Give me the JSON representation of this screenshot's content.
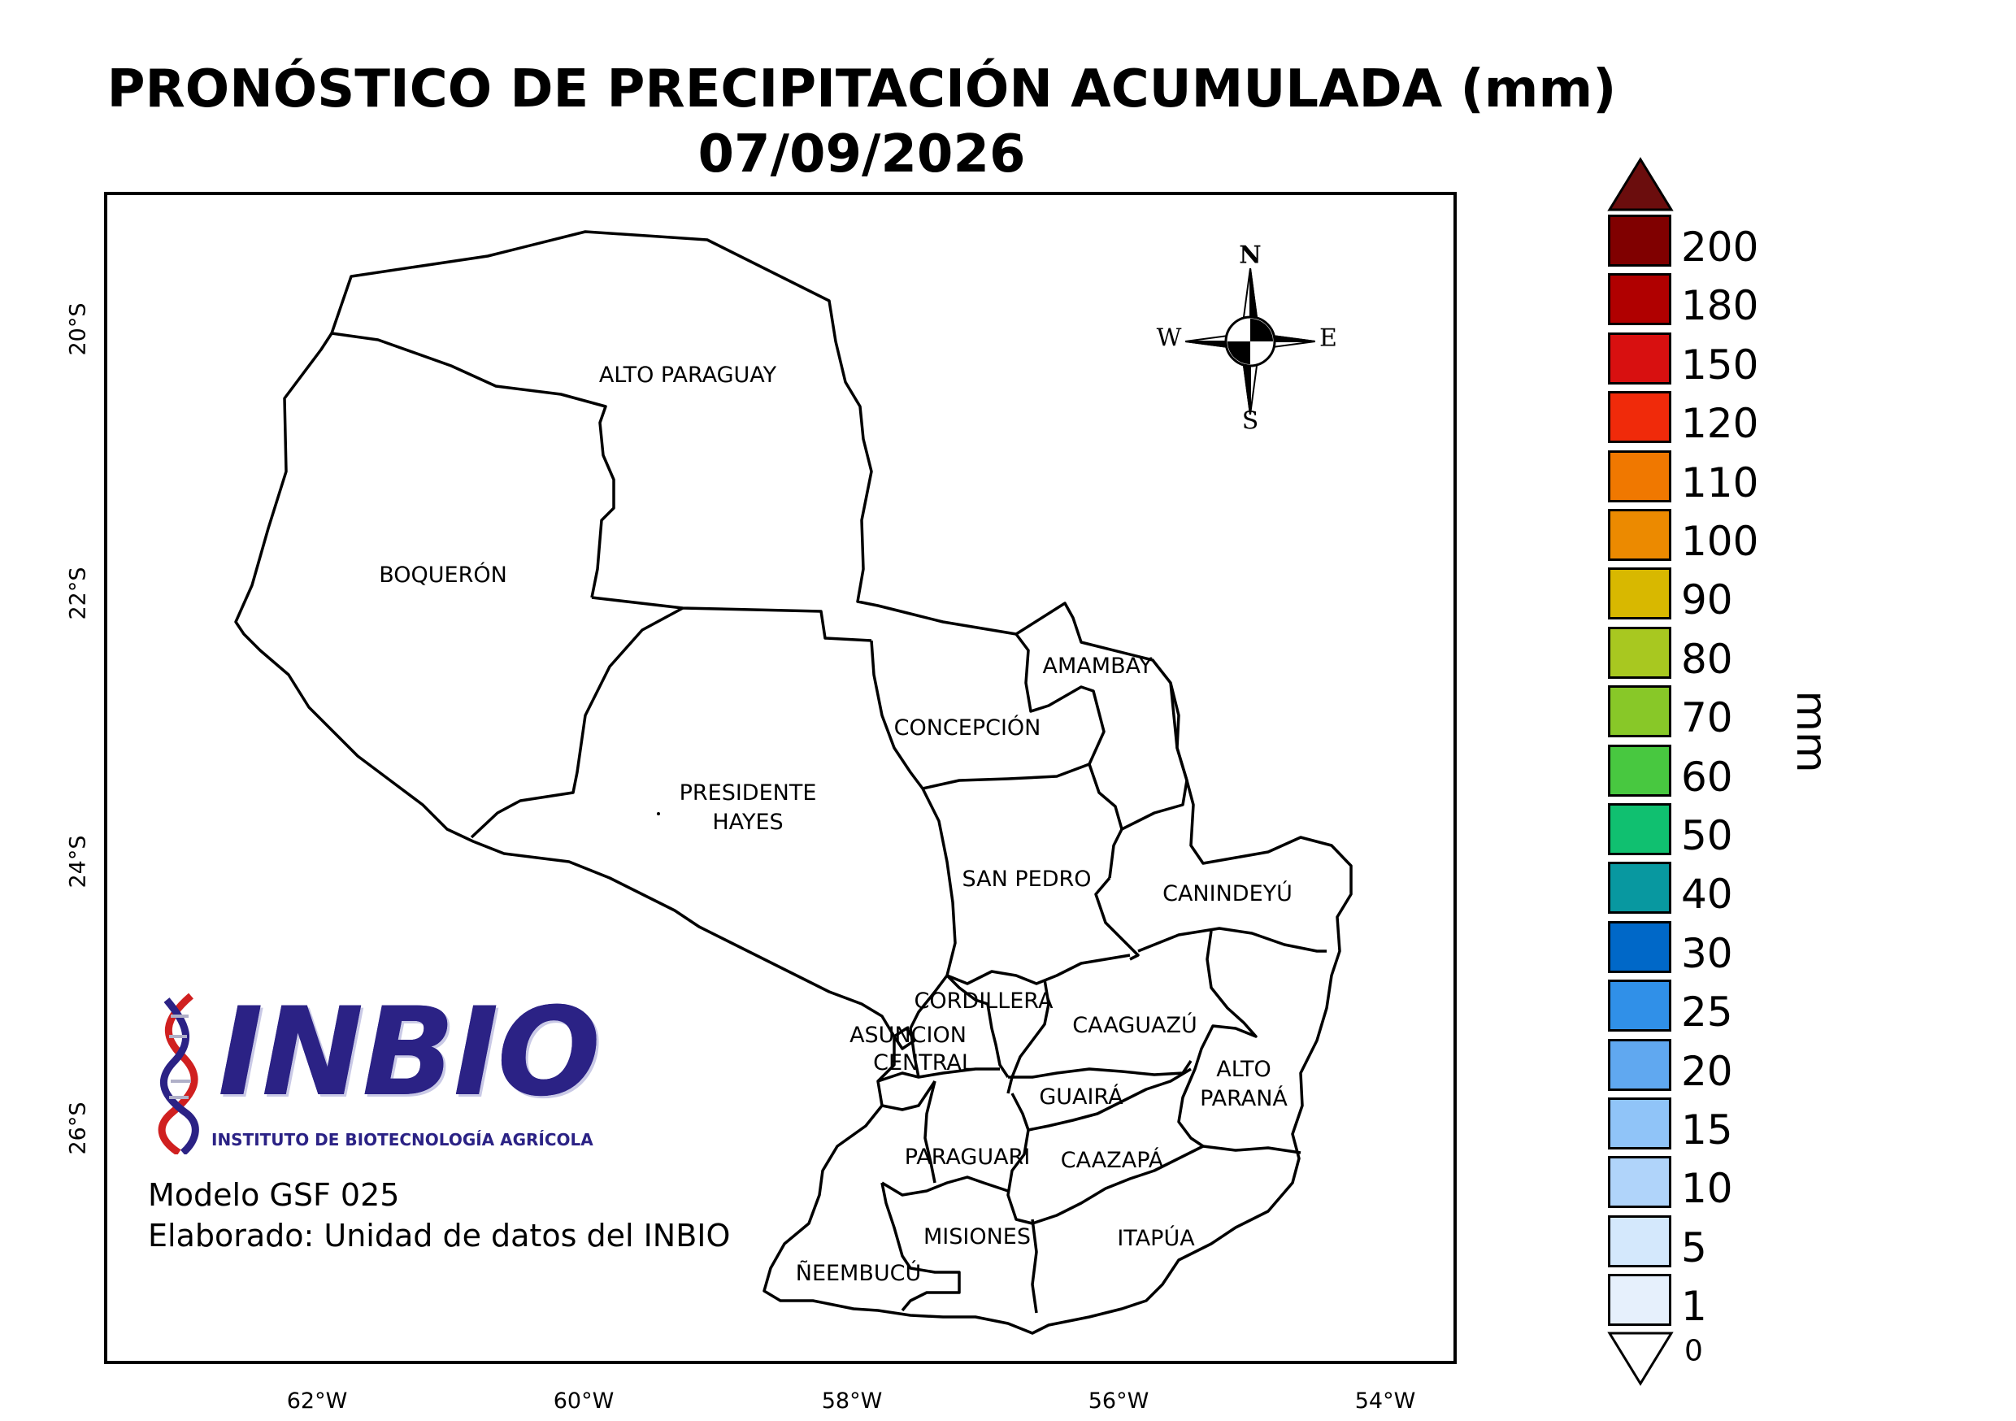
{
  "title": {
    "line1": "PRONÓSTICO DE PRECIPITACIÓN ACUMULADA (mm)",
    "line2": "07/09/2026"
  },
  "axes": {
    "x_ticks": [
      "62°W",
      "60°W",
      "58°W",
      "56°W",
      "54°W"
    ],
    "y_ticks": [
      "20°S",
      "22°S",
      "24°S",
      "26°S"
    ]
  },
  "departments": {
    "alto_paraguay": "ALTO PARAGUAY",
    "boqueron": "BOQUERÓN",
    "presidente_hayes": [
      "PRESIDENTE",
      "HAYES"
    ],
    "concepcion": "CONCEPCIÓN",
    "amambay": "AMAMBAY",
    "san_pedro": "SAN PEDRO",
    "canindeyu": "CANINDEYÚ",
    "cordillera": "CORDILLERA",
    "asuncion": "ASUNCION",
    "central": "CENTRAL",
    "caaguazu": "CAAGUAZÚ",
    "alto_parana": [
      "ALTO",
      "PARANÁ"
    ],
    "guaira": "GUAIRÁ",
    "paraguari": "PARAGUARI",
    "caazapa": "CAAZAPÁ",
    "misiones": "MISIONES",
    "itapua": "ITAPÚA",
    "neembucu": "ÑEEMBUCÚ"
  },
  "compass": {
    "n": "N",
    "s": "S",
    "e": "E",
    "w": "W"
  },
  "logo": {
    "name": "INBIO",
    "subtitle": "INSTITUTO DE BIOTECNOLOGÍA AGRÍCOLA",
    "colors": {
      "primary": "#2b2285",
      "accent": "#d02020"
    }
  },
  "credits": {
    "model": "Modelo GSF 025",
    "author": "Elaborado: Unidad de datos del INBIO"
  },
  "colorbar": {
    "unit": "mm",
    "under_label": "0",
    "over_color": "#6b0d0d",
    "under_color": "#ffffff",
    "levels": [
      {
        "label": "200",
        "color": "#800000"
      },
      {
        "label": "180",
        "color": "#b00000"
      },
      {
        "label": "150",
        "color": "#d81010"
      },
      {
        "label": "120",
        "color": "#f02a0a"
      },
      {
        "label": "110",
        "color": "#f07800"
      },
      {
        "label": "100",
        "color": "#ec8a00"
      },
      {
        "label": "90",
        "color": "#d8b800"
      },
      {
        "label": "80",
        "color": "#a8c820"
      },
      {
        "label": "70",
        "color": "#88c828"
      },
      {
        "label": "60",
        "color": "#48c840"
      },
      {
        "label": "50",
        "color": "#10c070"
      },
      {
        "label": "40",
        "color": "#0898a0"
      },
      {
        "label": "30",
        "color": "#0068c8"
      },
      {
        "label": "25",
        "color": "#3090e8"
      },
      {
        "label": "20",
        "color": "#60a8f0"
      },
      {
        "label": "15",
        "color": "#90c4f8"
      },
      {
        "label": "10",
        "color": "#b0d4fa"
      },
      {
        "label": "5",
        "color": "#d4e8fc"
      },
      {
        "label": "1",
        "color": "#e6f0fc"
      }
    ]
  }
}
